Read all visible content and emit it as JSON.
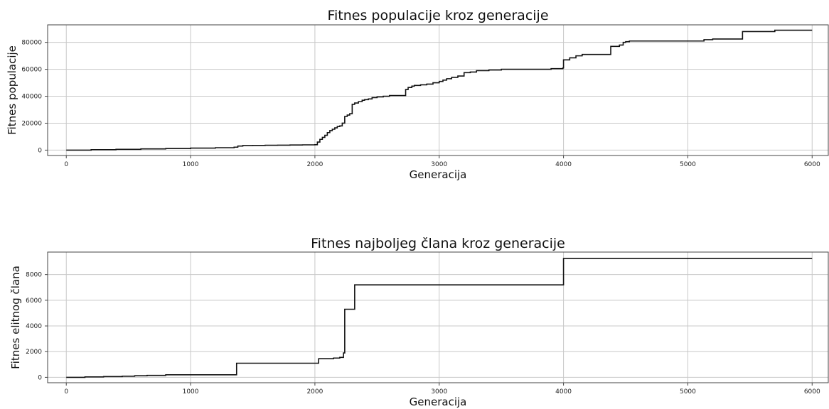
{
  "chart_data": [
    {
      "type": "line",
      "title": "Fitnes populacije kroz generacije",
      "xlabel": "Generacija",
      "ylabel": "Fitnes populacije",
      "xlim": [
        -150,
        6130
      ],
      "ylim": [
        -4000,
        93000
      ],
      "xticks": [
        0,
        1000,
        2000,
        3000,
        4000,
        5000,
        6000
      ],
      "xtick_labels": [
        "0",
        "1000",
        "2000",
        "3000",
        "4000",
        "5000",
        "6000"
      ],
      "yticks": [
        0,
        20000,
        40000,
        60000,
        80000
      ],
      "ytick_labels": [
        "0",
        "20000",
        "40000",
        "60000",
        "80000"
      ],
      "grid": true,
      "step": true,
      "series": [
        {
          "x": [
            0,
            200,
            400,
            600,
            800,
            1000,
            1200,
            1350,
            1380,
            1420,
            1500,
            1600,
            1700,
            1800,
            1900,
            2000,
            2020,
            2040,
            2060,
            2080,
            2100,
            2120,
            2140,
            2160,
            2180,
            2200,
            2220,
            2240,
            2260,
            2280,
            2300,
            2320,
            2350,
            2380,
            2400,
            2430,
            2460,
            2500,
            2550,
            2600,
            2650,
            2700,
            2730,
            2750,
            2780,
            2800,
            2850,
            2900,
            2950,
            3000,
            3030,
            3060,
            3100,
            3150,
            3200,
            3250,
            3300,
            3400,
            3500,
            3600,
            3700,
            3800,
            3900,
            3995,
            4000,
            4050,
            4100,
            4150,
            4200,
            4250,
            4300,
            4380,
            4450,
            4480,
            4500,
            4530,
            4600,
            4700,
            4800,
            4900,
            5000,
            5100,
            5130,
            5200,
            5300,
            5440,
            5500,
            5600,
            5700,
            5800,
            5900,
            6000
          ],
          "values": [
            0,
            300,
            600,
            900,
            1200,
            1500,
            1800,
            2200,
            3000,
            3400,
            3500,
            3600,
            3700,
            3800,
            3900,
            4000,
            6000,
            8000,
            9500,
            11000,
            13000,
            14500,
            15500,
            16500,
            17500,
            18000,
            20000,
            25000,
            26000,
            27000,
            34000,
            35000,
            36000,
            37000,
            37500,
            38000,
            39000,
            39500,
            40000,
            40500,
            40500,
            40500,
            45000,
            46500,
            47500,
            48000,
            48500,
            49000,
            50000,
            51000,
            52000,
            53000,
            54000,
            55000,
            57500,
            58000,
            59000,
            59500,
            60000,
            60000,
            60000,
            60000,
            60500,
            61000,
            67000,
            68500,
            70000,
            71000,
            71000,
            71000,
            71000,
            77000,
            78000,
            80000,
            80500,
            81000,
            81000,
            81000,
            81000,
            81000,
            81000,
            81000,
            82000,
            82500,
            82500,
            88000,
            88000,
            88000,
            89000,
            89000,
            89000,
            89000
          ]
        }
      ]
    },
    {
      "type": "line",
      "title": "Fitnes najboljeg člana kroz generacije",
      "xlabel": "Generacija",
      "ylabel": "Fitnes elitnog člana",
      "xlim": [
        -150,
        6130
      ],
      "ylim": [
        -420,
        9750
      ],
      "xticks": [
        0,
        1000,
        2000,
        3000,
        4000,
        5000,
        6000
      ],
      "xtick_labels": [
        "0",
        "1000",
        "2000",
        "3000",
        "4000",
        "5000",
        "6000"
      ],
      "yticks": [
        0,
        2000,
        4000,
        6000,
        8000
      ],
      "ytick_labels": [
        "0",
        "2000",
        "4000",
        "6000",
        "8000"
      ],
      "grid": true,
      "step": true,
      "series": [
        {
          "x": [
            0,
            150,
            300,
            450,
            550,
            650,
            800,
            1000,
            1200,
            1370,
            1600,
            1800,
            2000,
            2030,
            2100,
            2150,
            2200,
            2230,
            2240,
            2280,
            2320,
            2500,
            3000,
            3500,
            3980,
            4000,
            4500,
            5000,
            5500,
            6000
          ],
          "values": [
            0,
            30,
            60,
            90,
            120,
            150,
            200,
            200,
            200,
            1100,
            1100,
            1100,
            1100,
            1450,
            1450,
            1500,
            1550,
            1900,
            5300,
            5300,
            7200,
            7200,
            7200,
            7200,
            7200,
            9250,
            9250,
            9250,
            9250,
            9250
          ]
        }
      ]
    }
  ]
}
